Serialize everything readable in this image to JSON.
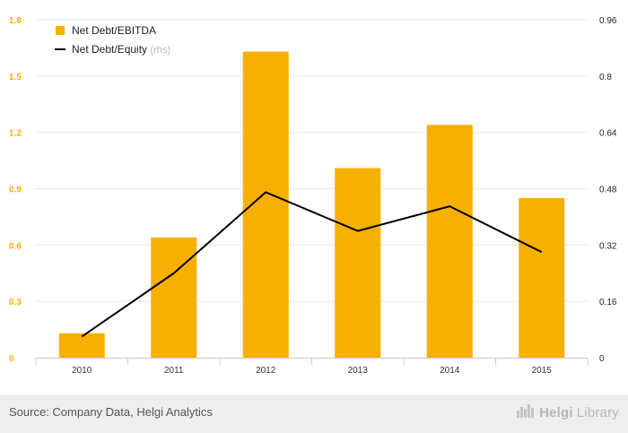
{
  "chart_data": {
    "type": "bar",
    "categories": [
      "2010",
      "2011",
      "2012",
      "2013",
      "2014",
      "2015"
    ],
    "series": [
      {
        "name": "Net Debt/EBITDA",
        "type": "bar",
        "axis": "left",
        "color": "#f8b000",
        "values": [
          0.13,
          0.64,
          1.63,
          1.01,
          1.24,
          0.85
        ]
      },
      {
        "name": "Net Debt/Equity",
        "legend_suffix": "(rhs)",
        "type": "line",
        "axis": "right",
        "color": "#000000",
        "values": [
          0.06,
          0.24,
          0.47,
          0.36,
          0.43,
          0.3
        ]
      }
    ],
    "y_left": {
      "ticks": [
        "0",
        "0.3",
        "0.6",
        "0.9",
        "1.2",
        "1.5",
        "1.8"
      ],
      "ylim": [
        0,
        1.8
      ],
      "tick_color": "#f8b000"
    },
    "y_right": {
      "ticks": [
        "0",
        "0.16",
        "0.32",
        "0.48",
        "0.64",
        "0.8",
        "0.96"
      ],
      "ylim": [
        0,
        0.96
      ]
    },
    "grid": true,
    "legend_position": "top-left"
  },
  "footer": {
    "source": "Source: Company Data, Helgi Analytics",
    "brand_part1": "Helgi",
    "brand_part2": "Library",
    "brand_icon": "chart-bars-icon"
  }
}
